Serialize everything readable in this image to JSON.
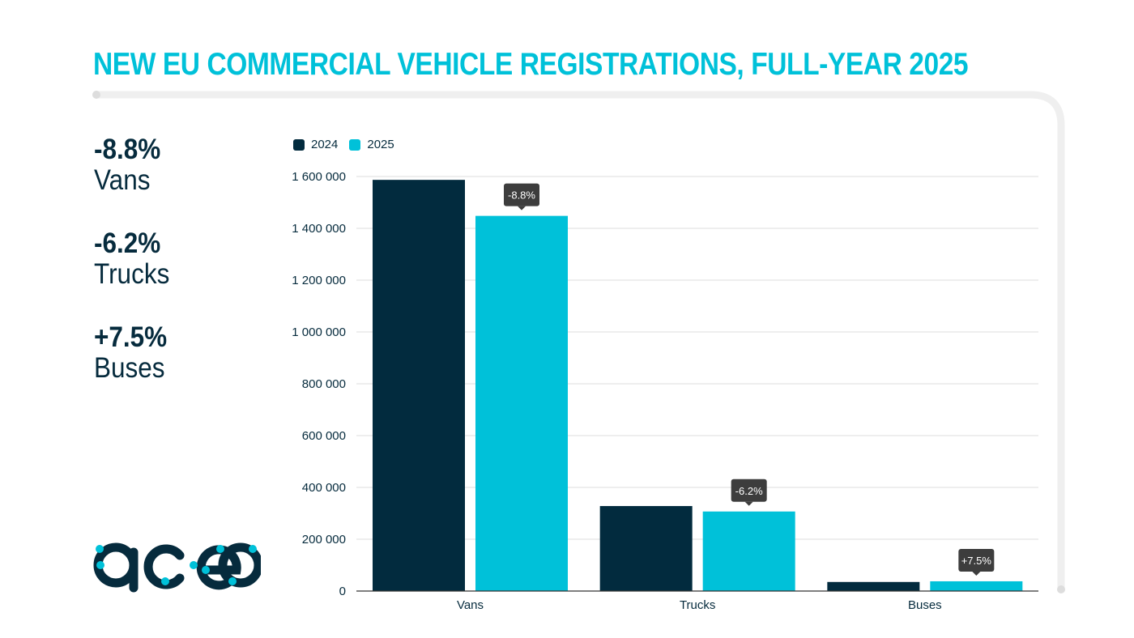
{
  "title": "NEW EU COMMERCIAL VEHICLE REGISTRATIONS, FULL-YEAR 2025",
  "kpis": [
    {
      "value": "-8.8%",
      "label": "Vans"
    },
    {
      "value": "-6.2%",
      "label": "Trucks"
    },
    {
      "value": "+7.5%",
      "label": "Buses"
    }
  ],
  "logo_text": "acea",
  "colors": {
    "title": "#00c1d9",
    "series_2024": "#022b3e",
    "series_2025": "#00c1d9",
    "tooltip": "#3d3d3d",
    "grid": "#dedede"
  },
  "chart_data": {
    "type": "bar",
    "categories": [
      "Vans",
      "Trucks",
      "Buses"
    ],
    "series": [
      {
        "name": "2024",
        "values": [
          1587000,
          328000,
          35000
        ]
      },
      {
        "name": "2025",
        "values": [
          1448000,
          307000,
          37600
        ]
      }
    ],
    "annotations": [
      "-8.8%",
      "-6.2%",
      "+7.5%"
    ],
    "yticks": [
      0,
      200000,
      400000,
      600000,
      800000,
      1000000,
      1200000,
      1400000,
      1600000
    ],
    "ytick_labels": [
      "0",
      "200 000",
      "400 000",
      "600 000",
      "800 000",
      "1 000 000",
      "1 200 000",
      "1 400 000",
      "1 600 000"
    ],
    "ylim": [
      0,
      1600000
    ],
    "grid": true,
    "legend_position": "top-left"
  }
}
